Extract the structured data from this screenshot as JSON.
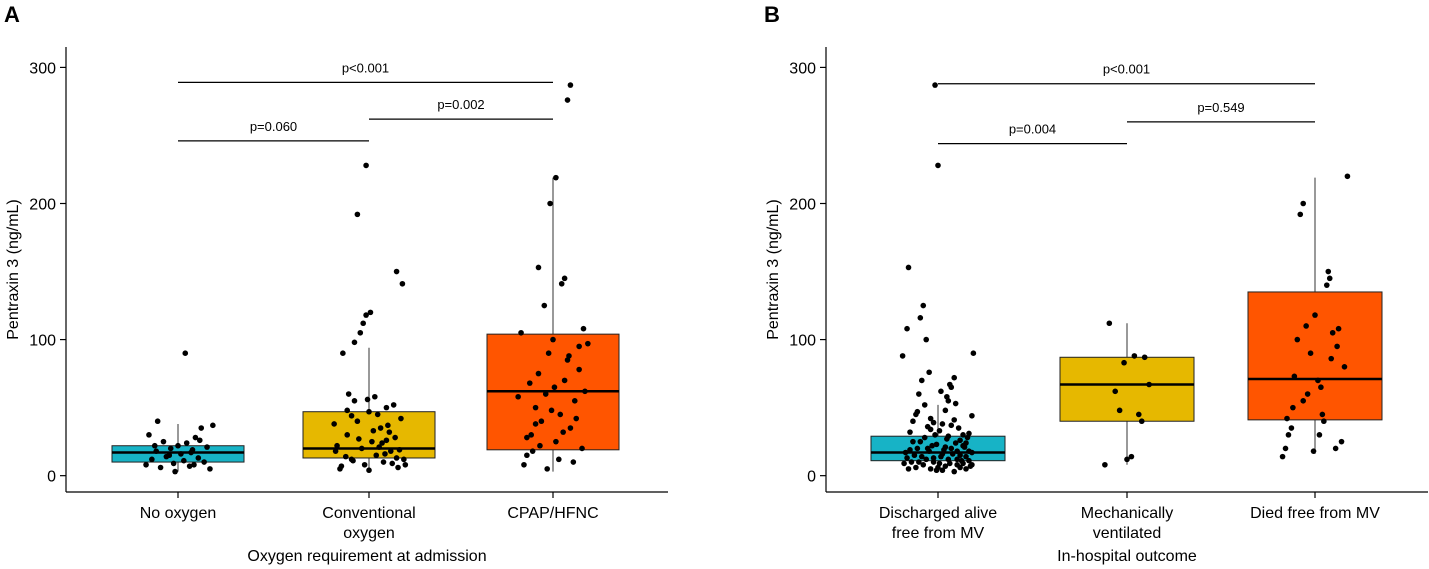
{
  "colors": {
    "cyan": "#17b3c6",
    "gold": "#e6b800",
    "orange": "#ff5500",
    "point": "#000000",
    "axis": "#000000"
  },
  "chart_data": [
    {
      "type": "box",
      "panel_label": "A",
      "xlabel": "Oxygen requirement at admission",
      "ylabel": "Pentraxin 3 (ng/mL)",
      "ylim": [
        -12,
        315
      ],
      "yticks": [
        0,
        100,
        200,
        300
      ],
      "categories": [
        [
          "No oxygen"
        ],
        [
          "Conventional",
          "oxygen"
        ],
        [
          "CPAP/HFNC"
        ]
      ],
      "boxes": [
        {
          "q1": 10,
          "median": 17,
          "q3": 22,
          "wlo": 3,
          "whi": 38,
          "color": "cyan"
        },
        {
          "q1": 13,
          "median": 20,
          "q3": 47,
          "wlo": 4,
          "whi": 94,
          "color": "gold"
        },
        {
          "q1": 19,
          "median": 62,
          "q3": 104,
          "wlo": 3,
          "whi": 219,
          "color": "orange"
        }
      ],
      "points": [
        [
          [
            -0.22,
            8
          ],
          [
            -0.18,
            12
          ],
          [
            -0.2,
            30
          ],
          [
            -0.15,
            18
          ],
          [
            -0.12,
            6
          ],
          [
            -0.1,
            25
          ],
          [
            -0.08,
            14
          ],
          [
            -0.05,
            20
          ],
          [
            -0.03,
            9
          ],
          [
            0,
            22
          ],
          [
            0.02,
            16
          ],
          [
            0.04,
            11
          ],
          [
            0.06,
            24
          ],
          [
            0.08,
            7
          ],
          [
            0.1,
            19
          ],
          [
            0.12,
            28
          ],
          [
            0.14,
            13
          ],
          [
            0.16,
            35
          ],
          [
            0.18,
            10
          ],
          [
            0.2,
            21
          ],
          [
            0.22,
            5
          ],
          [
            -0.02,
            3
          ],
          [
            0.15,
            26
          ],
          [
            -0.14,
            40
          ],
          [
            -0.06,
            15
          ],
          [
            0.24,
            37
          ],
          [
            0.05,
            90
          ],
          [
            0.09,
            17
          ],
          [
            -0.16,
            22
          ],
          [
            0.11,
            8
          ]
        ],
        [
          [
            -0.2,
            5
          ],
          [
            -0.18,
            90
          ],
          [
            -0.15,
            30
          ],
          [
            -0.12,
            12
          ],
          [
            -0.1,
            55
          ],
          [
            -0.08,
            40
          ],
          [
            -0.05,
            20
          ],
          [
            -0.03,
            8
          ],
          [
            0,
            47
          ],
          [
            0.02,
            25
          ],
          [
            0.05,
            15
          ],
          [
            0.08,
            35
          ],
          [
            0.1,
            10
          ],
          [
            0.12,
            50
          ],
          [
            0.15,
            18
          ],
          [
            0.18,
            28
          ],
          [
            0.2,
            6
          ],
          [
            0.22,
            42
          ],
          [
            -0.22,
            22
          ],
          [
            -0.16,
            14
          ],
          [
            -0.06,
            105
          ],
          [
            -0.04,
            112
          ],
          [
            -0.02,
            118
          ],
          [
            0.01,
            120
          ],
          [
            -0.14,
            60
          ],
          [
            0.04,
            58
          ],
          [
            0.06,
            45
          ],
          [
            0.24,
            12
          ],
          [
            0.19,
            150
          ],
          [
            0.23,
            141
          ],
          [
            -0.08,
            192
          ],
          [
            -0.02,
            228
          ],
          [
            -0.1,
            98
          ],
          [
            -0.12,
            44
          ],
          [
            0.14,
            32
          ],
          [
            0.16,
            9
          ],
          [
            -0.24,
            38
          ],
          [
            0.09,
            24
          ],
          [
            0.11,
            16
          ],
          [
            -0.19,
            7
          ],
          [
            0.0,
            4
          ],
          [
            0.13,
            37
          ],
          [
            -0.07,
            27
          ],
          [
            0.17,
            52
          ],
          [
            0.21,
            19
          ],
          [
            -0.11,
            11
          ],
          [
            0.03,
            33
          ],
          [
            0.07,
            21
          ],
          [
            -0.15,
            48
          ],
          [
            0.19,
            13
          ],
          [
            -0.01,
            56
          ],
          [
            0.25,
            8
          ],
          [
            -0.23,
            18
          ],
          [
            0.12,
            26
          ]
        ],
        [
          [
            -0.2,
            8
          ],
          [
            -0.18,
            15
          ],
          [
            -0.15,
            30
          ],
          [
            -0.12,
            50
          ],
          [
            -0.1,
            75
          ],
          [
            -0.08,
            40
          ],
          [
            -0.05,
            60
          ],
          [
            -0.03,
            90
          ],
          [
            0,
            100
          ],
          [
            0.02,
            25
          ],
          [
            0.05,
            45
          ],
          [
            0.08,
            70
          ],
          [
            0.1,
            85
          ],
          [
            0.12,
            35
          ],
          [
            0.15,
            55
          ],
          [
            0.18,
            95
          ],
          [
            0.2,
            20
          ],
          [
            0.22,
            62
          ],
          [
            -0.22,
            105
          ],
          [
            -0.16,
            68
          ],
          [
            -0.06,
            125
          ],
          [
            -0.1,
            153
          ],
          [
            0.06,
            141
          ],
          [
            0.08,
            145
          ],
          [
            -0.02,
            200
          ],
          [
            0.02,
            219
          ],
          [
            0.1,
            276
          ],
          [
            0.12,
            287
          ],
          [
            -0.14,
            18
          ],
          [
            0.14,
            10
          ],
          [
            -0.04,
            5
          ],
          [
            0.04,
            12
          ],
          [
            0.16,
            42
          ],
          [
            -0.12,
            38
          ],
          [
            0.18,
            78
          ],
          [
            -0.18,
            28
          ],
          [
            0.24,
            97
          ],
          [
            -0.24,
            58
          ],
          [
            0.01,
            65
          ],
          [
            0.07,
            32
          ],
          [
            -0.09,
            22
          ],
          [
            0.11,
            88
          ],
          [
            -0.01,
            48
          ],
          [
            0.21,
            108
          ]
        ]
      ],
      "brackets": [
        {
          "from": 0,
          "to": 1,
          "y": 246,
          "label": "p=0.060"
        },
        {
          "from": 1,
          "to": 2,
          "y": 262,
          "label": "p=0.002"
        },
        {
          "from": 0,
          "to": 2,
          "y": 289,
          "label": "p<0.001"
        }
      ]
    },
    {
      "type": "box",
      "panel_label": "B",
      "xlabel": "In-hospital outcome",
      "ylabel": "Pentraxin 3 (ng/mL)",
      "ylim": [
        -12,
        315
      ],
      "yticks": [
        0,
        100,
        200,
        300
      ],
      "categories": [
        [
          "Discharged alive",
          "free from MV"
        ],
        [
          "Mechanically",
          "ventilated"
        ],
        [
          "Died free from MV"
        ]
      ],
      "boxes": [
        {
          "q1": 11,
          "median": 17,
          "q3": 29,
          "wlo": 3,
          "whi": 52,
          "color": "cyan"
        },
        {
          "q1": 40,
          "median": 67,
          "q3": 87,
          "wlo": 8,
          "whi": 112,
          "color": "gold"
        },
        {
          "q1": 41,
          "median": 71,
          "q3": 135,
          "wlo": 16,
          "whi": 219,
          "color": "orange"
        }
      ],
      "points": [
        [
          [
            -0.2,
            5
          ],
          [
            -0.18,
            10
          ],
          [
            -0.16,
            15
          ],
          [
            -0.14,
            20
          ],
          [
            -0.12,
            25
          ],
          [
            -0.1,
            8
          ],
          [
            -0.08,
            12
          ],
          [
            -0.06,
            18
          ],
          [
            -0.04,
            22
          ],
          [
            -0.02,
            30
          ],
          [
            0,
            6
          ],
          [
            0.02,
            14
          ],
          [
            0.04,
            19
          ],
          [
            0.06,
            27
          ],
          [
            0.08,
            9
          ],
          [
            0.1,
            16
          ],
          [
            0.12,
            24
          ],
          [
            0.14,
            35
          ],
          [
            0.16,
            11
          ],
          [
            0.18,
            21
          ],
          [
            0.2,
            28
          ],
          [
            0.22,
            7
          ],
          [
            -0.22,
            17
          ],
          [
            -0.19,
            32
          ],
          [
            -0.17,
            40
          ],
          [
            -0.15,
            45
          ],
          [
            -0.13,
            60
          ],
          [
            -0.11,
            70
          ],
          [
            -0.09,
            52
          ],
          [
            -0.07,
            36
          ],
          [
            -0.05,
            42
          ],
          [
            -0.03,
            13
          ],
          [
            -0.01,
            23
          ],
          [
            0.01,
            33
          ],
          [
            0.03,
            38
          ],
          [
            0.05,
            48
          ],
          [
            0.07,
            55
          ],
          [
            0.09,
            65
          ],
          [
            0.11,
            72
          ],
          [
            0.13,
            18
          ],
          [
            0.15,
            26
          ],
          [
            0.17,
            9
          ],
          [
            0.19,
            14
          ],
          [
            0.21,
            31
          ],
          [
            0.23,
            44
          ],
          [
            0.24,
            90
          ],
          [
            -0.24,
            88
          ],
          [
            -0.21,
            108
          ],
          [
            -0.12,
            116
          ],
          [
            -0.1,
            125
          ],
          [
            -0.2,
            153
          ],
          [
            0.0,
            228
          ],
          [
            -0.02,
            287
          ],
          [
            -0.08,
            100
          ],
          [
            0.06,
            58
          ],
          [
            0.08,
            67
          ],
          [
            -0.05,
            5
          ],
          [
            -0.03,
            10
          ],
          [
            0.03,
            4
          ],
          [
            0.05,
            7
          ],
          [
            0.07,
            12
          ],
          [
            0.09,
            20
          ],
          [
            0.11,
            3
          ],
          [
            0.13,
            8
          ],
          [
            0.15,
            15
          ],
          [
            0.17,
            22
          ],
          [
            0.19,
            5
          ],
          [
            0.21,
            11
          ],
          [
            0.23,
            17
          ],
          [
            -0.23,
            9
          ],
          [
            -0.21,
            13
          ],
          [
            -0.19,
            19
          ],
          [
            -0.17,
            25
          ],
          [
            -0.15,
            6
          ],
          [
            -0.13,
            10
          ],
          [
            -0.11,
            14
          ],
          [
            -0.09,
            28
          ],
          [
            -0.07,
            20
          ],
          [
            -0.05,
            34
          ],
          [
            -0.03,
            39
          ],
          [
            -0.01,
            4
          ],
          [
            0.01,
            9
          ],
          [
            0.03,
            16
          ],
          [
            0.05,
            21
          ],
          [
            0.07,
            29
          ],
          [
            0.09,
            37
          ],
          [
            0.11,
            41
          ],
          [
            0.13,
            12
          ],
          [
            0.15,
            6
          ],
          [
            0.17,
            30
          ],
          [
            0.19,
            24
          ],
          [
            0.21,
            18
          ],
          [
            0.23,
            8
          ],
          [
            0.02,
            62
          ],
          [
            -0.14,
            47
          ],
          [
            0.12,
            53
          ],
          [
            -0.06,
            76
          ]
        ],
        [
          [
            -0.12,
            112
          ],
          [
            -0.08,
            62
          ],
          [
            0.05,
            88
          ],
          [
            0.12,
            87
          ],
          [
            0.15,
            67
          ],
          [
            -0.02,
            83
          ],
          [
            0.08,
            45
          ],
          [
            0.1,
            40
          ],
          [
            -0.15,
            8
          ],
          [
            0.0,
            12
          ],
          [
            0.03,
            14
          ],
          [
            -0.05,
            48
          ]
        ],
        [
          [
            -0.2,
            20
          ],
          [
            -0.18,
            30
          ],
          [
            -0.15,
            50
          ],
          [
            -0.12,
            100
          ],
          [
            -0.1,
            192
          ],
          [
            -0.08,
            200
          ],
          [
            -0.05,
            60
          ],
          [
            -0.03,
            90
          ],
          [
            0,
            118
          ],
          [
            0.02,
            70
          ],
          [
            0.05,
            45
          ],
          [
            0.08,
            140
          ],
          [
            0.1,
            145
          ],
          [
            0.12,
            105
          ],
          [
            0.15,
            95
          ],
          [
            0.18,
            25
          ],
          [
            0.2,
            80
          ],
          [
            -0.22,
            14
          ],
          [
            -0.16,
            35
          ],
          [
            -0.06,
            110
          ],
          [
            0.04,
            65
          ],
          [
            0.06,
            40
          ],
          [
            0.14,
            20
          ],
          [
            0.22,
            220
          ],
          [
            -0.14,
            73
          ],
          [
            0.09,
            150
          ],
          [
            -0.01,
            18
          ],
          [
            0.16,
            108
          ],
          [
            -0.08,
            55
          ],
          [
            0.03,
            30
          ],
          [
            0.11,
            86
          ],
          [
            -0.19,
            42
          ]
        ]
      ],
      "brackets": [
        {
          "from": 0,
          "to": 1,
          "y": 244,
          "label": "p=0.004"
        },
        {
          "from": 1,
          "to": 2,
          "y": 260,
          "label": "p=0.549"
        },
        {
          "from": 0,
          "to": 2,
          "y": 288,
          "label": "p<0.001"
        }
      ]
    }
  ]
}
